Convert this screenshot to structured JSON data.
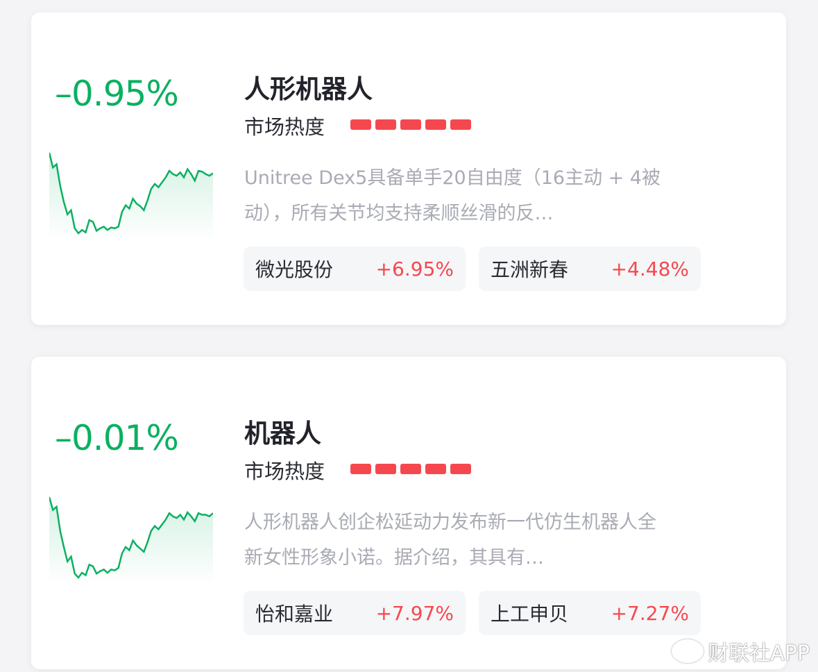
{
  "colors": {
    "down": "#0bb061",
    "up": "#f5484e",
    "heat": "#f5484e"
  },
  "cards": [
    {
      "change": "–0.95%",
      "title": "人形机器人",
      "heat_label": "市场热度",
      "heat_level": 5,
      "heat_max": 5,
      "description": "Unitree Dex5具备单手20自由度（16主动 + 4被动），所有关节均支持柔顺丝滑的反…",
      "sparkline": [
        100,
        82,
        86,
        60,
        40,
        25,
        30,
        8,
        2,
        6,
        3,
        18,
        16,
        5,
        8,
        10,
        6,
        9,
        8,
        10,
        28,
        36,
        32,
        44,
        38,
        35,
        30,
        42,
        56,
        62,
        58,
        64,
        70,
        78,
        74,
        72,
        76,
        70,
        80,
        74,
        66,
        78,
        77,
        74,
        72,
        75
      ],
      "stocks": [
        {
          "name": "微光股份",
          "change": "+6.95%"
        },
        {
          "name": "五洲新春",
          "change": "+4.48%"
        }
      ]
    },
    {
      "change": "–0.01%",
      "title": "机器人",
      "heat_label": "市场热度",
      "heat_level": 5,
      "heat_max": 5,
      "description": "人形机器人创企松延动力发布新一代仿生机器人全新女性形象小诺。据介绍，其具有…",
      "sparkline": [
        100,
        84,
        88,
        58,
        38,
        20,
        26,
        5,
        0,
        6,
        3,
        16,
        14,
        5,
        8,
        10,
        6,
        10,
        9,
        12,
        30,
        38,
        34,
        46,
        40,
        36,
        32,
        44,
        58,
        64,
        60,
        66,
        72,
        80,
        76,
        74,
        78,
        72,
        81,
        76,
        70,
        80,
        78,
        78,
        76,
        80
      ],
      "stocks": [
        {
          "name": "怡和嘉业",
          "change": "+7.97%"
        },
        {
          "name": "上工申贝",
          "change": "+7.27%"
        }
      ]
    }
  ],
  "watermark": "财联社APP"
}
